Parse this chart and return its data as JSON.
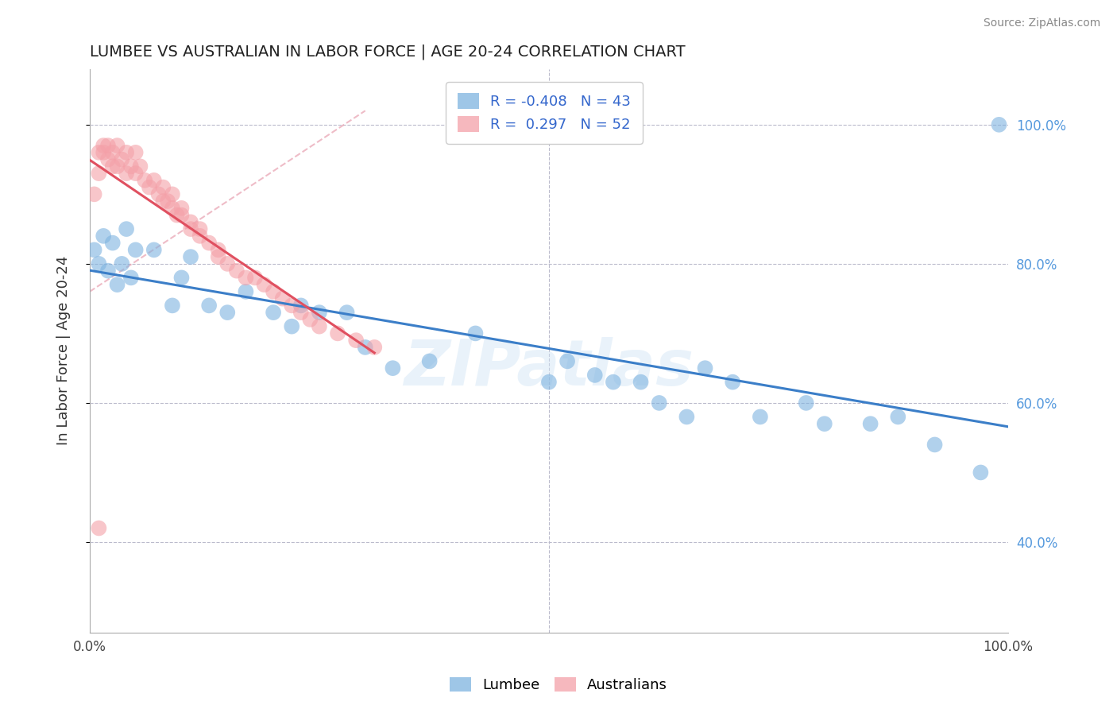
{
  "title": "LUMBEE VS AUSTRALIAN IN LABOR FORCE | AGE 20-24 CORRELATION CHART",
  "source": "Source: ZipAtlas.com",
  "ylabel": "In Labor Force | Age 20-24",
  "xlim": [
    0.0,
    1.0
  ],
  "ylim": [
    0.27,
    1.08
  ],
  "R_lumbee": -0.408,
  "N_lumbee": 43,
  "R_australian": 0.297,
  "N_australian": 52,
  "lumbee_color": "#7EB3E0",
  "australian_color": "#F4A0A8",
  "lumbee_line_color": "#3B7EC8",
  "australian_line_color": "#E05060",
  "australian_dash_color": "#F0A0B0",
  "background_color": "#FFFFFF",
  "watermark": "ZIPatlas",
  "lumbee_x": [
    0.005,
    0.01,
    0.015,
    0.02,
    0.025,
    0.03,
    0.035,
    0.04,
    0.045,
    0.05,
    0.07,
    0.09,
    0.1,
    0.11,
    0.13,
    0.15,
    0.17,
    0.2,
    0.22,
    0.23,
    0.25,
    0.28,
    0.3,
    0.33,
    0.37,
    0.42,
    0.5,
    0.52,
    0.55,
    0.57,
    0.6,
    0.62,
    0.65,
    0.67,
    0.7,
    0.73,
    0.78,
    0.8,
    0.85,
    0.88,
    0.92,
    0.97,
    0.99
  ],
  "lumbee_y": [
    0.82,
    0.8,
    0.84,
    0.79,
    0.83,
    0.77,
    0.8,
    0.85,
    0.78,
    0.82,
    0.82,
    0.74,
    0.78,
    0.81,
    0.74,
    0.73,
    0.76,
    0.73,
    0.71,
    0.74,
    0.73,
    0.73,
    0.68,
    0.65,
    0.66,
    0.7,
    0.63,
    0.66,
    0.64,
    0.63,
    0.63,
    0.6,
    0.58,
    0.65,
    0.63,
    0.58,
    0.6,
    0.57,
    0.57,
    0.58,
    0.54,
    0.5,
    1.0
  ],
  "australian_x": [
    0.005,
    0.01,
    0.01,
    0.015,
    0.015,
    0.02,
    0.02,
    0.025,
    0.025,
    0.03,
    0.03,
    0.035,
    0.04,
    0.04,
    0.045,
    0.05,
    0.05,
    0.055,
    0.06,
    0.065,
    0.07,
    0.075,
    0.08,
    0.08,
    0.085,
    0.09,
    0.09,
    0.095,
    0.1,
    0.1,
    0.11,
    0.11,
    0.12,
    0.12,
    0.13,
    0.14,
    0.14,
    0.15,
    0.16,
    0.17,
    0.18,
    0.19,
    0.2,
    0.21,
    0.22,
    0.23,
    0.24,
    0.25,
    0.27,
    0.29,
    0.31,
    0.01
  ],
  "australian_y": [
    0.9,
    0.96,
    0.93,
    0.97,
    0.96,
    0.97,
    0.95,
    0.94,
    0.96,
    0.97,
    0.94,
    0.95,
    0.96,
    0.93,
    0.94,
    0.93,
    0.96,
    0.94,
    0.92,
    0.91,
    0.92,
    0.9,
    0.91,
    0.89,
    0.89,
    0.9,
    0.88,
    0.87,
    0.88,
    0.87,
    0.86,
    0.85,
    0.85,
    0.84,
    0.83,
    0.82,
    0.81,
    0.8,
    0.79,
    0.78,
    0.78,
    0.77,
    0.76,
    0.75,
    0.74,
    0.73,
    0.72,
    0.71,
    0.7,
    0.69,
    0.68,
    0.42
  ]
}
